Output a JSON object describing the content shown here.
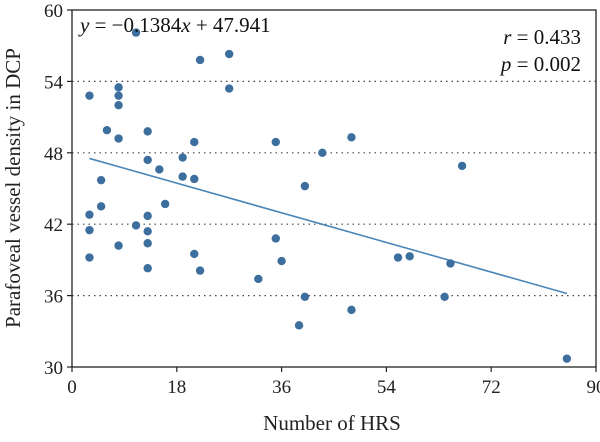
{
  "chart_data": {
    "type": "scatter",
    "xlabel": "Number of HRS",
    "ylabel": "Parafoveal vessel density in DCP",
    "xlim": [
      0,
      90
    ],
    "ylim": [
      30,
      60
    ],
    "xticks": [
      0,
      18,
      36,
      54,
      72,
      90
    ],
    "yticks": [
      30,
      36,
      42,
      48,
      54,
      60
    ],
    "grid": "horizontal dotted",
    "colors": {
      "points": "#3d6f9e",
      "fit_line": "#4a86b8",
      "axes": "#222222",
      "grid": "#444444"
    },
    "regression": {
      "equation_text": "y = −0.1384x + 47.941",
      "slope": -0.1384,
      "intercept": 47.941,
      "x_range": [
        3,
        85
      ]
    },
    "stats": {
      "r_text": "r = 0.433",
      "p_text": "p = 0.002"
    },
    "points": [
      {
        "x": 3,
        "y": 52.8
      },
      {
        "x": 3,
        "y": 42.8
      },
      {
        "x": 3,
        "y": 41.5
      },
      {
        "x": 3,
        "y": 39.2
      },
      {
        "x": 5,
        "y": 45.7
      },
      {
        "x": 5,
        "y": 43.5
      },
      {
        "x": 6,
        "y": 49.9
      },
      {
        "x": 8,
        "y": 53.5
      },
      {
        "x": 8,
        "y": 52.8
      },
      {
        "x": 8,
        "y": 52.0
      },
      {
        "x": 8,
        "y": 49.2
      },
      {
        "x": 8,
        "y": 40.2
      },
      {
        "x": 11,
        "y": 58.1
      },
      {
        "x": 11,
        "y": 41.9
      },
      {
        "x": 13,
        "y": 49.8
      },
      {
        "x": 13,
        "y": 47.4
      },
      {
        "x": 13,
        "y": 42.7
      },
      {
        "x": 13,
        "y": 41.4
      },
      {
        "x": 13,
        "y": 40.4
      },
      {
        "x": 13,
        "y": 38.3
      },
      {
        "x": 15,
        "y": 46.6
      },
      {
        "x": 16,
        "y": 43.7
      },
      {
        "x": 19,
        "y": 47.6
      },
      {
        "x": 19,
        "y": 46.0
      },
      {
        "x": 21,
        "y": 48.9
      },
      {
        "x": 21,
        "y": 45.8
      },
      {
        "x": 21,
        "y": 39.5
      },
      {
        "x": 22,
        "y": 55.8
      },
      {
        "x": 22,
        "y": 38.1
      },
      {
        "x": 27,
        "y": 56.3
      },
      {
        "x": 27,
        "y": 53.4
      },
      {
        "x": 32,
        "y": 37.4
      },
      {
        "x": 35,
        "y": 48.9
      },
      {
        "x": 35,
        "y": 40.8
      },
      {
        "x": 36,
        "y": 38.9
      },
      {
        "x": 39,
        "y": 33.5
      },
      {
        "x": 40,
        "y": 45.2
      },
      {
        "x": 40,
        "y": 35.9
      },
      {
        "x": 43,
        "y": 48.0
      },
      {
        "x": 48,
        "y": 49.3
      },
      {
        "x": 48,
        "y": 34.8
      },
      {
        "x": 56,
        "y": 39.2
      },
      {
        "x": 58,
        "y": 39.3
      },
      {
        "x": 64,
        "y": 35.9
      },
      {
        "x": 65,
        "y": 38.7
      },
      {
        "x": 67,
        "y": 46.9
      },
      {
        "x": 85,
        "y": 30.7
      }
    ]
  }
}
